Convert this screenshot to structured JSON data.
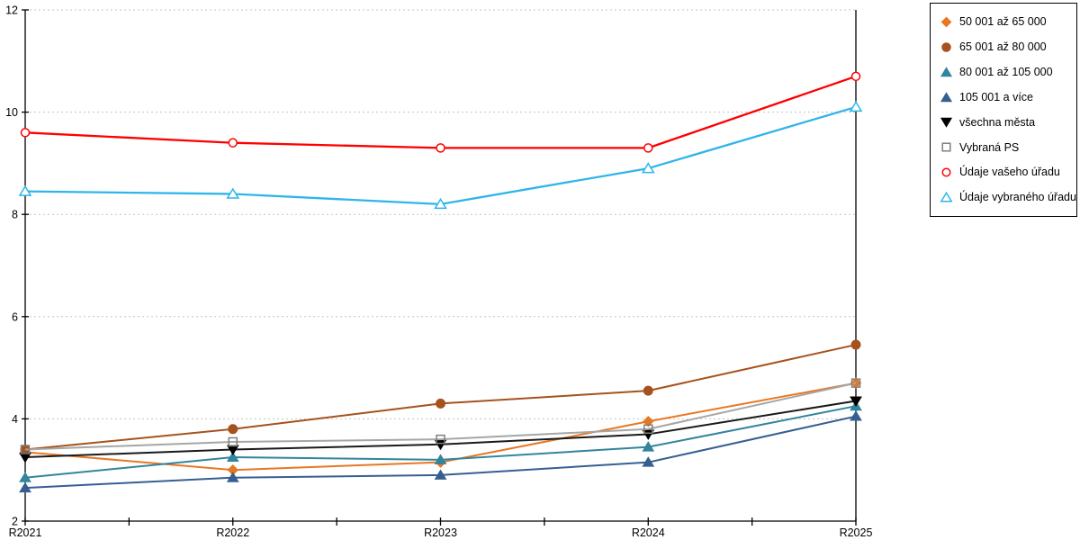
{
  "chart_data": {
    "type": "line",
    "title": "",
    "xlabel": "",
    "ylabel": "",
    "x_categories": [
      "R2021",
      "R2022",
      "R2023",
      "R2024",
      "R2025"
    ],
    "y_axis": {
      "min": 2,
      "max": 12,
      "ticks": [
        2,
        4,
        6,
        8,
        10,
        12
      ]
    },
    "grid": "horizontal-dotted",
    "grid_color": "#c3c3c3",
    "axis_color": "#000000",
    "legend_position": "right",
    "series": [
      {
        "name": "50 001 až 65 000",
        "color": "#E87722",
        "line_color": "#E87722",
        "marker": "diamond",
        "open": false,
        "values": [
          3.35,
          3.0,
          3.15,
          3.95,
          4.7
        ]
      },
      {
        "name": "65 001 až 80 000",
        "color": "#A5521D",
        "line_color": "#A5521D",
        "marker": "circle",
        "open": false,
        "values": [
          3.4,
          3.8,
          4.3,
          4.55,
          5.45
        ]
      },
      {
        "name": "80 001 až 105 000",
        "color": "#31859C",
        "line_color": "#31859C",
        "marker": "triangle-up",
        "open": false,
        "values": [
          2.85,
          3.25,
          3.2,
          3.45,
          4.25
        ]
      },
      {
        "name": "105 001 a více",
        "color": "#365F91",
        "line_color": "#365F91",
        "marker": "triangle-up",
        "open": false,
        "values": [
          2.65,
          2.85,
          2.9,
          3.15,
          4.05
        ]
      },
      {
        "name": "všechna města",
        "color": "#000000",
        "line_color": "#1A1A1A",
        "marker": "triangle-down",
        "open": false,
        "values": [
          3.25,
          3.4,
          3.5,
          3.7,
          4.35
        ]
      },
      {
        "name": "Vybraná PS",
        "color": "#7F7F7F",
        "line_color": "#A6A6A6",
        "marker": "square",
        "open": true,
        "values": [
          3.4,
          3.55,
          3.6,
          3.8,
          4.7
        ]
      },
      {
        "name": "Údaje vašeho úřadu",
        "color": "#FE0000",
        "line_color": "#FE0000",
        "marker": "circle",
        "open": true,
        "values": [
          9.6,
          9.4,
          9.3,
          9.3,
          10.7
        ]
      },
      {
        "name": "Údaje vybraného úřadu",
        "color": "#2FB5E9",
        "line_color": "#2FB5E9",
        "marker": "triangle-up",
        "open": true,
        "values": [
          8.45,
          8.4,
          8.2,
          8.9,
          10.1
        ]
      }
    ]
  }
}
